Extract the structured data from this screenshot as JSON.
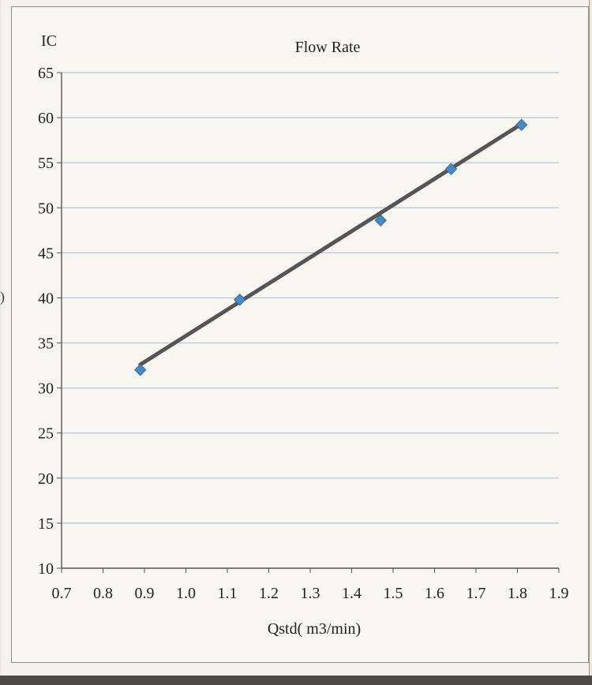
{
  "chart_data": {
    "type": "scatter",
    "title": "Flow Rate",
    "ylabel": "IC",
    "xlabel": "Qstd( m3/min)",
    "xlim": [
      0.7,
      1.9
    ],
    "ylim": [
      10,
      65
    ],
    "xticks": [
      "0.7",
      "0.8",
      "0.9",
      "1.0",
      "1.1",
      "1.2",
      "1.3",
      "1.4",
      "1.5",
      "1.6",
      "1.7",
      "1.8",
      "1.9"
    ],
    "yticks": [
      "10",
      "15",
      "20",
      "25",
      "30",
      "35",
      "40",
      "45",
      "50",
      "55",
      "60",
      "65"
    ],
    "grid": true,
    "series": [
      {
        "color": "#4a8ac4",
        "points": [
          {
            "x": 0.89,
            "y": 32.0
          },
          {
            "x": 1.13,
            "y": 39.8
          },
          {
            "x": 1.47,
            "y": 48.6
          },
          {
            "x": 1.64,
            "y": 54.3
          },
          {
            "x": 1.81,
            "y": 59.2
          }
        ]
      }
    ],
    "trendline": {
      "type": "linear",
      "color": "#555555",
      "x": [
        0.89,
        1.81
      ],
      "y": [
        32.6,
        59.3
      ]
    }
  },
  "edge_glyph": ")"
}
